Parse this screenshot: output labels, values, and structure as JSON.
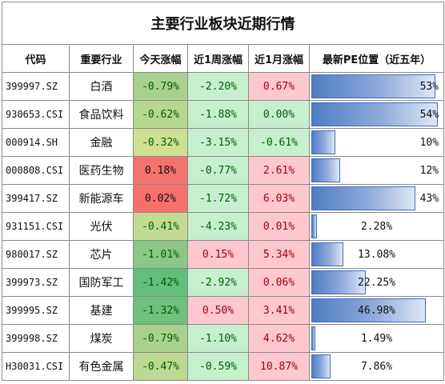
{
  "title": "主要行业板块近期行情",
  "headers": [
    "代码",
    "重要行业",
    "今天涨幅",
    "近1周涨幅",
    "近1月涨幅",
    "最新PE位置（近五年）"
  ],
  "colors": {
    "neg_text": "#006100",
    "pos_text": "#9c0006",
    "week_neg_bg": "#c6efce",
    "week_pos_bg": "#ffc7ce",
    "month_pos_bg": "#ffc7ce",
    "month_neg_bg": "#c6efce",
    "bar_border": "#3f6fb5"
  },
  "rows": [
    {
      "code": "399997.SZ",
      "industry": "白酒",
      "today": "-0.79%",
      "week": "-2.20%",
      "month": "0.67%",
      "pe": "53%",
      "pe_value": 0.53,
      "today_bg": "#a9d18e",
      "month_sign": "pos",
      "week_sign": "neg"
    },
    {
      "code": "930653.CSI",
      "industry": "食品饮料",
      "today": "-0.62%",
      "week": "-1.88%",
      "month": "0.00%",
      "pe": "54%",
      "pe_value": 0.54,
      "today_bg": "#b5d78f",
      "month_sign": "neg",
      "week_sign": "neg"
    },
    {
      "code": "000914.SH",
      "industry": "金融",
      "today": "-0.32%",
      "week": "-3.15%",
      "month": "-0.61%",
      "pe": "10%",
      "pe_value": 0.1,
      "today_bg": "#cfe094",
      "month_sign": "neg",
      "week_sign": "neg"
    },
    {
      "code": "000808.CSI",
      "industry": "医药生物",
      "today": "0.18%",
      "week": "-0.77%",
      "month": "2.61%",
      "pe": "12%",
      "pe_value": 0.12,
      "today_bg": "#f4736f",
      "month_sign": "pos",
      "week_sign": "neg"
    },
    {
      "code": "399417.SZ",
      "industry": "新能源车",
      "today": "0.02%",
      "week": "-1.72%",
      "month": "6.03%",
      "pe": "43%",
      "pe_value": 0.43,
      "today_bg": "#f8706c",
      "month_sign": "pos",
      "week_sign": "neg"
    },
    {
      "code": "931151.CSI",
      "industry": "光伏",
      "today": "-0.41%",
      "week": "-4.23%",
      "month": "0.01%",
      "pe": "2.28%",
      "pe_value": 0.0228,
      "today_bg": "#c3da92",
      "month_sign": "pos",
      "week_sign": "neg"
    },
    {
      "code": "980017.SZ",
      "industry": "芯片",
      "today": "-1.01%",
      "week": "0.15%",
      "month": "5.34%",
      "pe": "13.08%",
      "pe_value": 0.1308,
      "today_bg": "#8cc788",
      "month_sign": "pos",
      "week_sign": "pos"
    },
    {
      "code": "399973.SZ",
      "industry": "国防军工",
      "today": "-1.42%",
      "week": "-2.92%",
      "month": "0.06%",
      "pe": "22.25%",
      "pe_value": 0.2225,
      "today_bg": "#63be7b",
      "month_sign": "pos",
      "week_sign": "neg"
    },
    {
      "code": "399995.SZ",
      "industry": "基建",
      "today": "-1.32%",
      "week": "0.50%",
      "month": "3.41%",
      "pe": "46.98%",
      "pe_value": 0.4698,
      "today_bg": "#6dc17d",
      "month_sign": "pos",
      "week_sign": "pos"
    },
    {
      "code": "399998.SZ",
      "industry": "煤炭",
      "today": "-0.79%",
      "week": "-1.10%",
      "month": "4.62%",
      "pe": "1.49%",
      "pe_value": 0.0149,
      "today_bg": "#a9d18e",
      "month_sign": "pos",
      "week_sign": "neg"
    },
    {
      "code": "H30031.CSI",
      "industry": "有色金属",
      "today": "-0.47%",
      "week": "-0.59%",
      "month": "10.87%",
      "pe": "7.86%",
      "pe_value": 0.0786,
      "today_bg": "#bdd891",
      "month_sign": "pos",
      "week_sign": "neg"
    }
  ]
}
